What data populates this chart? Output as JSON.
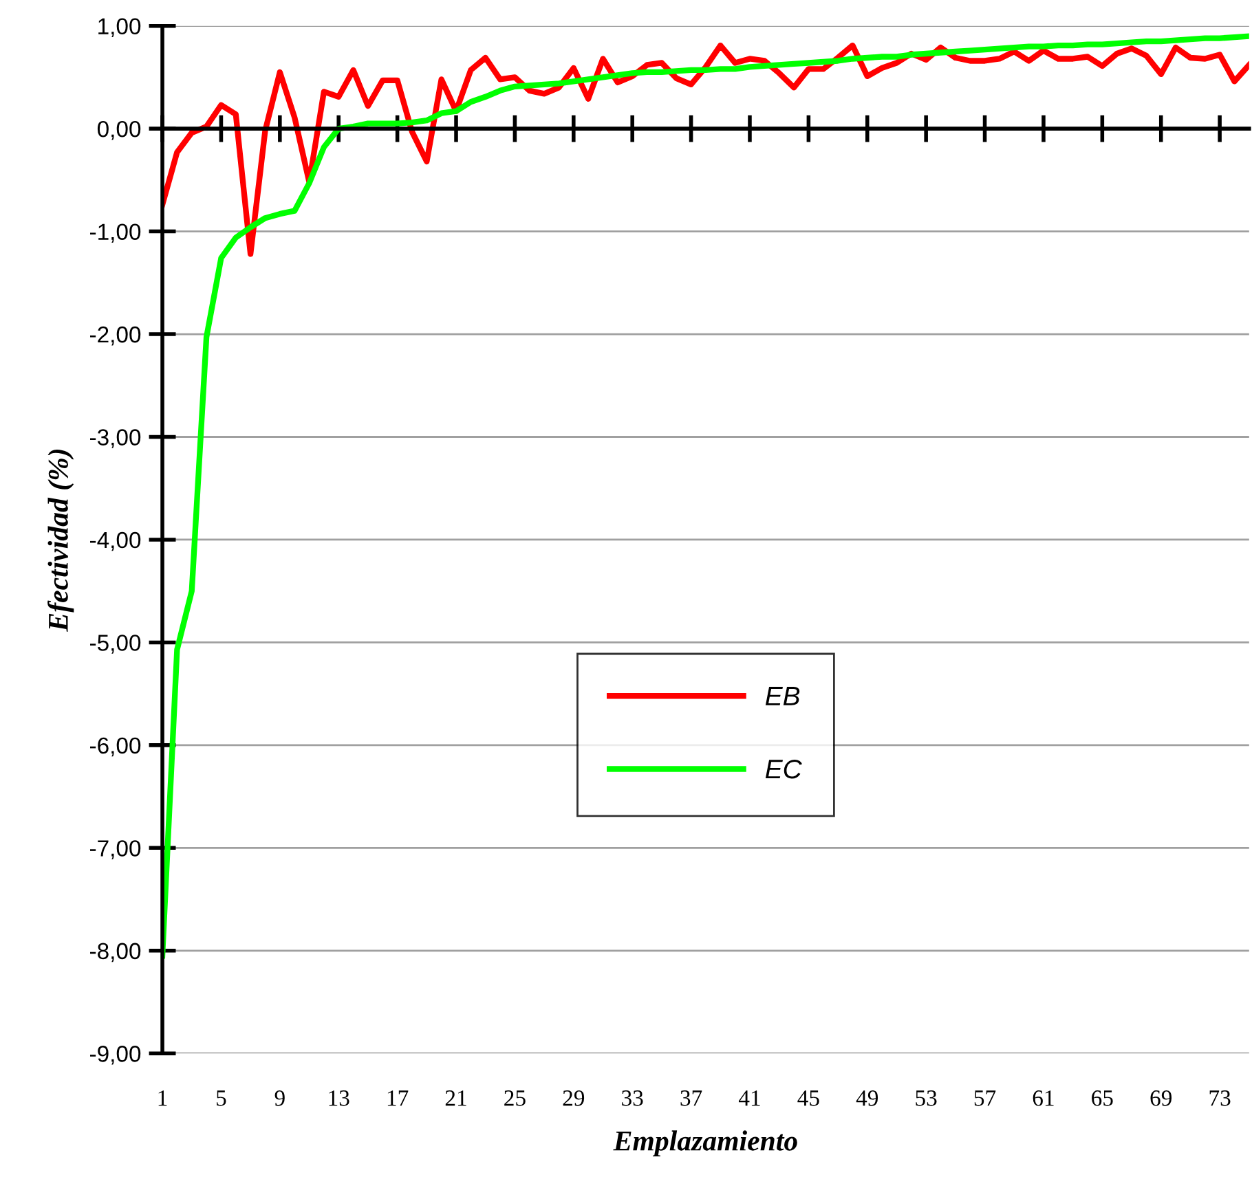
{
  "chart_data": {
    "type": "line",
    "xlabel": "Emplazamiento",
    "ylabel": "Efectividad (%)",
    "categories": [
      "1",
      null,
      null,
      null,
      "5",
      null,
      null,
      null,
      "9",
      null,
      null,
      null,
      "13",
      null,
      null,
      null,
      "17",
      null,
      null,
      null,
      "21",
      null,
      null,
      null,
      "25",
      null,
      null,
      null,
      "29",
      null,
      null,
      null,
      "33",
      null,
      null,
      null,
      "37",
      null,
      null,
      null,
      "41",
      null,
      null,
      null,
      "45",
      null,
      null,
      null,
      "49",
      null,
      null,
      null,
      "53",
      null,
      null,
      null,
      "57",
      null,
      null,
      null,
      "61",
      null,
      null,
      null,
      "65",
      null,
      null,
      null,
      "69",
      null,
      null,
      null,
      "73",
      null,
      null
    ],
    "series": [
      {
        "name": "EB",
        "color": "#ff0000",
        "values": [
          -0.74,
          -0.23,
          -0.04,
          0.02,
          0.23,
          0.14,
          -1.22,
          -0.02,
          0.55,
          0.11,
          -0.52,
          0.36,
          0.31,
          0.57,
          0.22,
          0.47,
          0.47,
          -0.03,
          -0.32,
          0.48,
          0.17,
          0.57,
          0.69,
          0.48,
          0.5,
          0.37,
          0.34,
          0.4,
          0.59,
          0.29,
          0.68,
          0.45,
          0.51,
          0.62,
          0.64,
          0.49,
          0.43,
          0.6,
          0.81,
          0.64,
          0.68,
          0.66,
          0.54,
          0.4,
          0.58,
          0.58,
          0.69,
          0.81,
          0.51,
          0.59,
          0.64,
          0.73,
          0.67,
          0.79,
          0.69,
          0.66,
          0.66,
          0.68,
          0.75,
          0.66,
          0.76,
          0.68,
          0.68,
          0.7,
          0.61,
          0.73,
          0.78,
          0.71,
          0.53,
          0.79,
          0.69,
          0.68,
          0.72,
          0.46,
          0.62
        ]
      },
      {
        "name": "EC",
        "color": "#00ff00",
        "values": [
          -8.05,
          -5.07,
          -4.5,
          -2.03,
          -1.26,
          -1.06,
          -0.96,
          -0.87,
          -0.83,
          -0.8,
          -0.53,
          -0.18,
          0.0,
          0.02,
          0.05,
          0.05,
          0.05,
          0.06,
          0.08,
          0.15,
          0.17,
          0.26,
          0.31,
          0.37,
          0.41,
          0.42,
          0.43,
          0.44,
          0.46,
          0.48,
          0.5,
          0.52,
          0.54,
          0.55,
          0.55,
          0.56,
          0.57,
          0.57,
          0.58,
          0.58,
          0.6,
          0.61,
          0.62,
          0.63,
          0.64,
          0.65,
          0.66,
          0.68,
          0.69,
          0.7,
          0.7,
          0.72,
          0.73,
          0.74,
          0.75,
          0.76,
          0.77,
          0.78,
          0.79,
          0.8,
          0.8,
          0.81,
          0.81,
          0.82,
          0.82,
          0.83,
          0.84,
          0.85,
          0.85,
          0.86,
          0.87,
          0.88,
          0.88,
          0.89,
          0.9
        ]
      }
    ],
    "ylim": [
      -9,
      1
    ],
    "yticks": [
      {
        "value": 1,
        "label": "1,00"
      },
      {
        "value": 0,
        "label": "0,00"
      },
      {
        "value": -1,
        "label": "-1,00"
      },
      {
        "value": -2,
        "label": "-2,00"
      },
      {
        "value": -3,
        "label": "-3,00"
      },
      {
        "value": -4,
        "label": "-4,00"
      },
      {
        "value": -5,
        "label": "-5,00"
      },
      {
        "value": -6,
        "label": "-6,00"
      },
      {
        "value": -7,
        "label": "-7,00"
      },
      {
        "value": -8,
        "label": "-8,00"
      },
      {
        "value": -9,
        "label": "-9,00"
      }
    ],
    "grid": "y",
    "legend": "center",
    "marker": "none",
    "line_style": "solid"
  }
}
